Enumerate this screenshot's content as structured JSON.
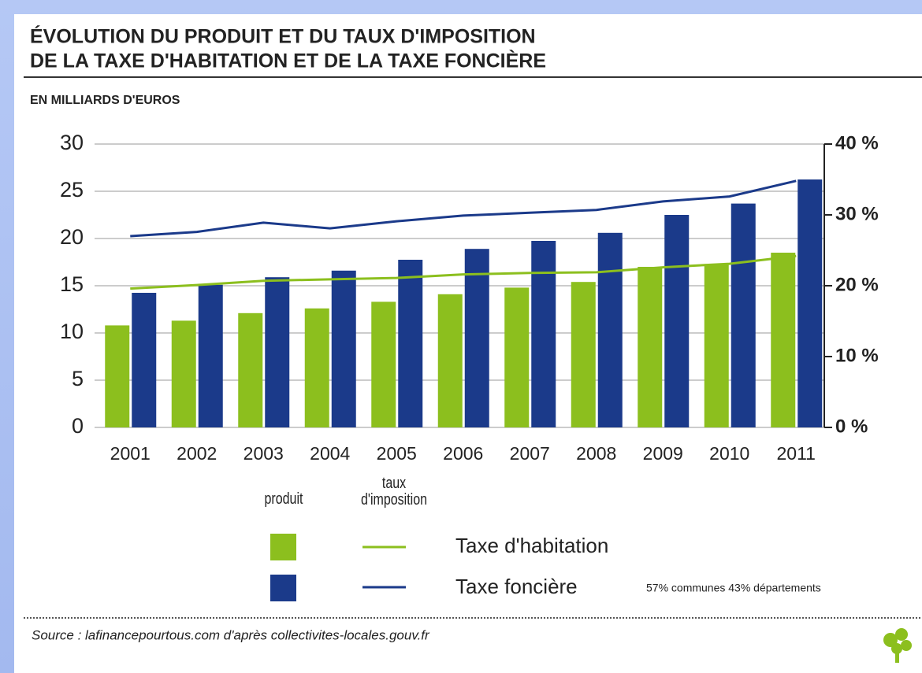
{
  "chart_data": {
    "type": "bar",
    "title": [
      "ÉVOLUTION DU PRODUIT ET DU TAUX D'IMPOSITION",
      "DE LA TAXE D'HABITATION ET DE LA TAXE FONCIÈRE"
    ],
    "subtitle": "EN MILLIARDS D'EUROS",
    "categories": [
      "2001",
      "2002",
      "2003",
      "2004",
      "2005",
      "2006",
      "2007",
      "2008",
      "2009",
      "2010",
      "2011"
    ],
    "series": [
      {
        "name": "Taxe d'habitation",
        "kind": "bar",
        "color": "#8cbf1e",
        "values": [
          10.8,
          11.3,
          12.1,
          12.6,
          13.3,
          14.1,
          14.8,
          15.4,
          17.0,
          17.3,
          18.5
        ]
      },
      {
        "name": "Taxe foncière",
        "kind": "bar",
        "color": "#1b3a8a",
        "values": [
          14.25,
          15.1,
          15.9,
          16.6,
          17.75,
          18.9,
          19.75,
          20.6,
          22.5,
          23.7,
          26.25
        ]
      },
      {
        "name": "Taxe d'habitation",
        "kind": "line",
        "axis": "y2",
        "color": "#8cbf1e",
        "values": [
          19.6,
          20.1,
          20.7,
          20.9,
          21.1,
          21.6,
          21.8,
          21.9,
          22.6,
          23.1,
          24.2
        ]
      },
      {
        "name": "Taxe foncière",
        "kind": "line",
        "axis": "y2",
        "color": "#1b3a8a",
        "values": [
          27.0,
          27.6,
          28.9,
          28.1,
          29.1,
          29.9,
          30.3,
          30.7,
          31.9,
          32.6,
          34.8
        ]
      }
    ],
    "ylim": [
      0,
      30
    ],
    "yticks": [
      0,
      5,
      10,
      15,
      20,
      25,
      30
    ],
    "y2lim": [
      0,
      40
    ],
    "y2ticks": [
      {
        "value": 0,
        "label": "0 %"
      },
      {
        "value": 10,
        "label": "10 %"
      },
      {
        "value": 20,
        "label": "20 %"
      },
      {
        "value": 30,
        "label": "30 %"
      },
      {
        "value": 40,
        "label": "40 %"
      }
    ],
    "grid": true,
    "legend_headers": [
      "produit",
      "taux\nd'imposition"
    ],
    "annotation": "57% communes  43% départements",
    "source": "Source : lafinancepourtous.com d'après collectivites-locales.gouv.fr"
  }
}
